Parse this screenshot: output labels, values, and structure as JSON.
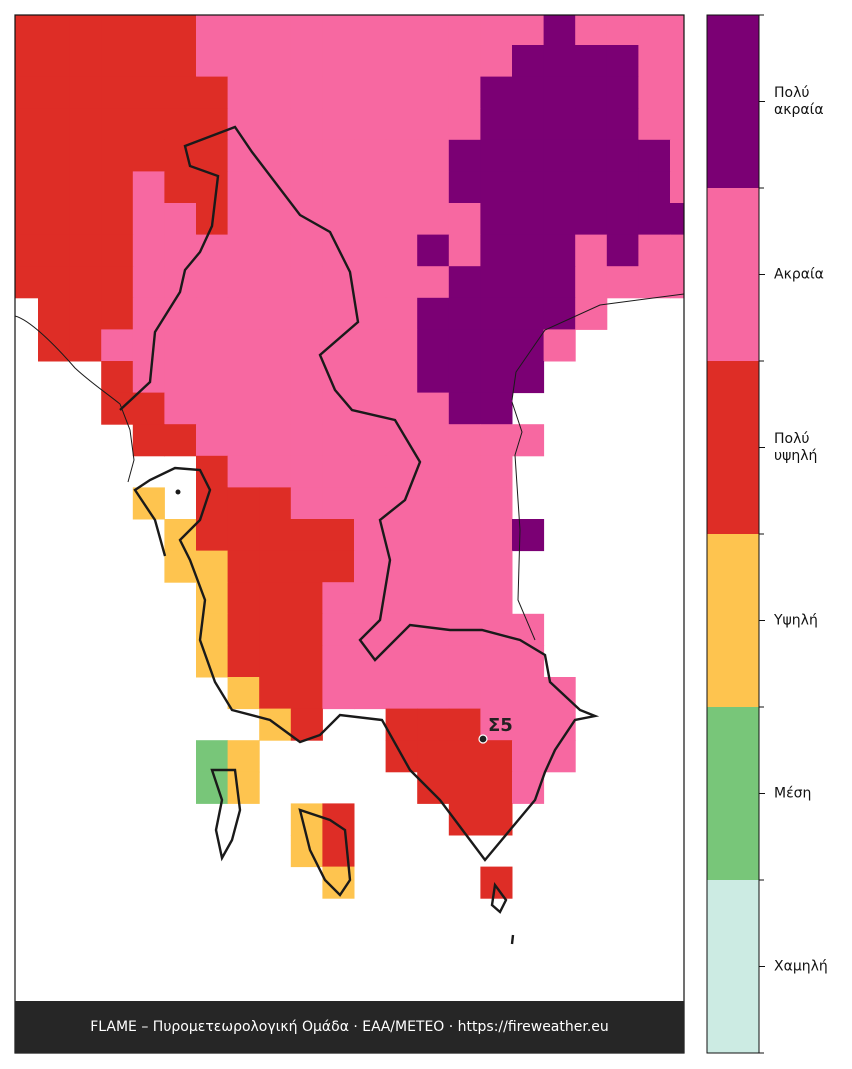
{
  "map": {
    "grid": [
      "3333334444444444454444",
      "3333334444444444555544",
      "3333333444444445555544",
      "3333333444444445555544",
      "3333333444444455555554",
      "3333433444444455555554",
      "3333443444444445555555",
      "3333444444444545554544",
      "3333444444444455554444",
      ".333444444444555554...",
      ".33444444444455554....",
      "...34444444445555.....",
      "...3344444444455......",
      "....3344444444444.....",
      "......3444444444......",
      "....2.3334444444......",
      ".....233333444445.....",
      ".....22333344444......",
      "......2333444444......",
      "......23334444444.....",
      "......23334444444.....",
      ".......23344444444....",
      "........23..333444....",
      "......12....333344....",
      "......12.....3334.....",
      ".........23...33......",
      ".........23...........",
      "..........2....3......"
    ],
    "legend": [
      {
        "label": "Χαμηλή",
        "color": "#ccebe3"
      },
      {
        "label": "Μέση",
        "color": "#78c679"
      },
      {
        "label": "Υψηλή",
        "color": "#fec44f"
      },
      {
        "label": "Πολύ\nυψηλή",
        "color": "#de2d26"
      },
      {
        "label": "Ακραία",
        "color": "#f768a1"
      },
      {
        "label": "Πολύ\nακραία",
        "color": "#7b0074"
      }
    ],
    "point": {
      "label": "Σ5"
    },
    "footer": "FLAME – Πυρομετεωρολογική Ομάδα · ΕΑΑ/METEO · https://fireweather.eu"
  }
}
